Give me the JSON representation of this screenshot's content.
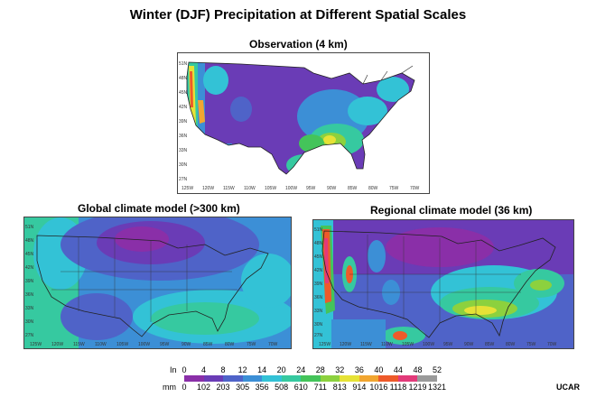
{
  "title": "Winter (DJF) Precipitation at Different Spatial Scales",
  "maps": [
    {
      "key": "obs",
      "title": "Observation (4 km)",
      "style": "obs"
    },
    {
      "key": "gcm",
      "title": "Global climate model (>300 km)",
      "style": "gcm"
    },
    {
      "key": "rcm",
      "title": "Regional climate model  (36 km)",
      "style": "rcm"
    }
  ],
  "lat_labels": [
    "51N",
    "48N",
    "45N",
    "42N",
    "39N",
    "36N",
    "33N",
    "30N",
    "27N"
  ],
  "lon_labels": [
    "125W",
    "120W",
    "115W",
    "110W",
    "105W",
    "100W",
    "95W",
    "90W",
    "85W",
    "80W",
    "75W",
    "70W"
  ],
  "legend": {
    "in_label": "In",
    "mm_label": "mm",
    "in_values": [
      "0",
      "4",
      "8",
      "12",
      "14",
      "20",
      "24",
      "28",
      "32",
      "36",
      "40",
      "44",
      "48",
      "52"
    ],
    "mm_values": [
      "0",
      "102",
      "203",
      "305",
      "356",
      "508",
      "610",
      "711",
      "813",
      "914",
      "1016",
      "1118",
      "1219",
      "1321"
    ],
    "colors": [
      "#ffffff",
      "#8a2fa8",
      "#6a3cb6",
      "#4f63c8",
      "#3c8fd6",
      "#33c2d6",
      "#36c9a0",
      "#44c45a",
      "#8cd13e",
      "#e6e236",
      "#f2a630",
      "#ee5a2a",
      "#e23a7a",
      "#9a9a9a"
    ]
  },
  "credit": "UCAR"
}
